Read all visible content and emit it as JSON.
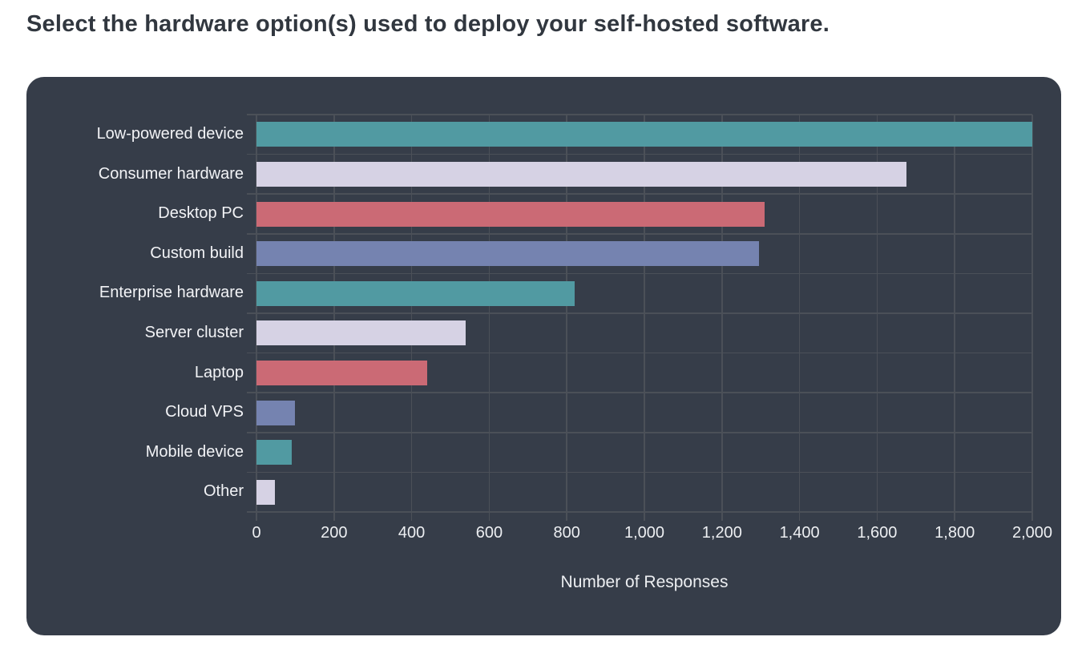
{
  "page": {
    "title": "Select the hardware option(s) used to deploy your self-hosted software."
  },
  "chart_data": {
    "type": "bar",
    "orientation": "horizontal",
    "title": "Select the hardware option(s) used to deploy your self-hosted software.",
    "xlabel": "Number of Responses",
    "ylabel": "",
    "xlim": [
      0,
      2000
    ],
    "x_ticks": [
      0,
      200,
      400,
      600,
      800,
      1000,
      1200,
      1400,
      1600,
      1800,
      2000
    ],
    "x_tick_labels": [
      "0",
      "200",
      "400",
      "600",
      "800",
      "1,000",
      "1,200",
      "1,400",
      "1,600",
      "1,800",
      "2,000"
    ],
    "grid": true,
    "legend": false,
    "categories": [
      "Low-powered device",
      "Consumer hardware",
      "Desktop PC",
      "Custom build",
      "Enterprise hardware",
      "Server cluster",
      "Laptop",
      "Cloud VPS",
      "Mobile device",
      "Other"
    ],
    "values": [
      2000,
      1675,
      1310,
      1295,
      820,
      540,
      440,
      100,
      90,
      48
    ],
    "bar_colors": [
      "#519AA2",
      "#D6D2E4",
      "#CB6A75",
      "#7583B0",
      "#519AA2",
      "#D6D2E4",
      "#CB6A75",
      "#7583B0",
      "#519AA2",
      "#D6D2E4"
    ]
  },
  "theme": {
    "page_bg": "#FFFFFF",
    "title_color": "#31373F",
    "card_bg": "#363D49",
    "grid_color": "#4B5058",
    "category_label_color": "#F2F3F6",
    "tick_label_color": "#EDEFF2",
    "axis_title_color": "#EDEFF2"
  }
}
